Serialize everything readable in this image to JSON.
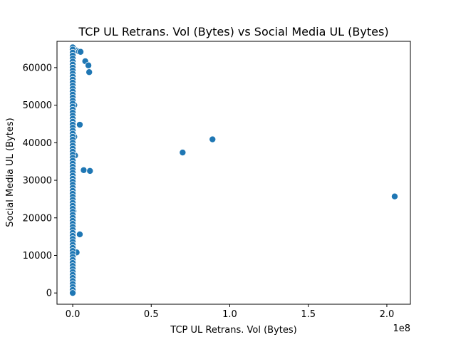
{
  "chart_data": {
    "type": "scatter",
    "title": "TCP UL Retrans. Vol (Bytes) vs Social Media UL (Bytes)",
    "xlabel": "TCP UL Retrans. Vol (Bytes)",
    "ylabel": "Social Media UL (Bytes)",
    "x_offset_label": "1e8",
    "xlim": [
      -0.1,
      2.15
    ],
    "ylim": [
      -3000,
      67000
    ],
    "x_ticks": [
      0.0,
      0.5,
      1.0,
      1.5,
      2.0
    ],
    "x_tick_labels": [
      "0.0",
      "0.5",
      "1.0",
      "1.5",
      "2.0"
    ],
    "y_ticks": [
      0,
      10000,
      20000,
      30000,
      40000,
      50000,
      60000
    ],
    "y_tick_labels": [
      "0",
      "10000",
      "20000",
      "30000",
      "40000",
      "50000",
      "60000"
    ],
    "grid": false,
    "marker_color": "#1f77b4",
    "marker_edge_color": "#ffffff",
    "points": [
      {
        "x": 0.005,
        "y": 64400
      },
      {
        "x": 0.02,
        "y": 64600
      },
      {
        "x": 0.04,
        "y": 64300
      },
      {
        "x": 0.05,
        "y": 64200
      },
      {
        "x": 0.08,
        "y": 61700
      },
      {
        "x": 0.1,
        "y": 60600
      },
      {
        "x": 0.105,
        "y": 58800
      },
      {
        "x": 0.01,
        "y": 50000
      },
      {
        "x": 0.045,
        "y": 44800
      },
      {
        "x": 0.01,
        "y": 41600
      },
      {
        "x": 0.015,
        "y": 36600
      },
      {
        "x": 0.07,
        "y": 32700
      },
      {
        "x": 0.11,
        "y": 32500
      },
      {
        "x": 0.005,
        "y": 21800
      },
      {
        "x": 0.045,
        "y": 15600
      },
      {
        "x": 0.025,
        "y": 10800
      },
      {
        "x": 0.7,
        "y": 37400
      },
      {
        "x": 0.89,
        "y": 40900
      },
      {
        "x": 2.05,
        "y": 25700
      },
      {
        "x": 0.0,
        "y": 65400
      },
      {
        "x": 0.0,
        "y": 64800
      },
      {
        "x": 0.0,
        "y": 64000
      },
      {
        "x": 0.0,
        "y": 63200
      },
      {
        "x": 0.0,
        "y": 62400
      },
      {
        "x": 0.0,
        "y": 61600
      },
      {
        "x": 0.0,
        "y": 60800
      },
      {
        "x": 0.0,
        "y": 60000
      },
      {
        "x": 0.0,
        "y": 59200
      },
      {
        "x": 0.0,
        "y": 58400
      },
      {
        "x": 0.0,
        "y": 57600
      },
      {
        "x": 0.0,
        "y": 56800
      },
      {
        "x": 0.0,
        "y": 56000
      },
      {
        "x": 0.0,
        "y": 55200
      },
      {
        "x": 0.0,
        "y": 54400
      },
      {
        "x": 0.0,
        "y": 53600
      },
      {
        "x": 0.0,
        "y": 52800
      },
      {
        "x": 0.0,
        "y": 52000
      },
      {
        "x": 0.0,
        "y": 51200
      },
      {
        "x": 0.0,
        "y": 50400
      },
      {
        "x": 0.0,
        "y": 49600
      },
      {
        "x": 0.0,
        "y": 48800
      },
      {
        "x": 0.0,
        "y": 48000
      },
      {
        "x": 0.0,
        "y": 47200
      },
      {
        "x": 0.0,
        "y": 46400
      },
      {
        "x": 0.0,
        "y": 45600
      },
      {
        "x": 0.0,
        "y": 44800
      },
      {
        "x": 0.0,
        "y": 44000
      },
      {
        "x": 0.0,
        "y": 43200
      },
      {
        "x": 0.0,
        "y": 42400
      },
      {
        "x": 0.0,
        "y": 41600
      },
      {
        "x": 0.0,
        "y": 40800
      },
      {
        "x": 0.0,
        "y": 40000
      },
      {
        "x": 0.0,
        "y": 39200
      },
      {
        "x": 0.0,
        "y": 38400
      },
      {
        "x": 0.0,
        "y": 37600
      },
      {
        "x": 0.0,
        "y": 36800
      },
      {
        "x": 0.0,
        "y": 36000
      },
      {
        "x": 0.0,
        "y": 35200
      },
      {
        "x": 0.0,
        "y": 34400
      },
      {
        "x": 0.0,
        "y": 33600
      },
      {
        "x": 0.0,
        "y": 32800
      },
      {
        "x": 0.0,
        "y": 32000
      },
      {
        "x": 0.0,
        "y": 31200
      },
      {
        "x": 0.0,
        "y": 30400
      },
      {
        "x": 0.0,
        "y": 29600
      },
      {
        "x": 0.0,
        "y": 28800
      },
      {
        "x": 0.0,
        "y": 28000
      },
      {
        "x": 0.0,
        "y": 27200
      },
      {
        "x": 0.0,
        "y": 26400
      },
      {
        "x": 0.0,
        "y": 25600
      },
      {
        "x": 0.0,
        "y": 24800
      },
      {
        "x": 0.0,
        "y": 24000
      },
      {
        "x": 0.0,
        "y": 23200
      },
      {
        "x": 0.0,
        "y": 22400
      },
      {
        "x": 0.0,
        "y": 21600
      },
      {
        "x": 0.0,
        "y": 20800
      },
      {
        "x": 0.0,
        "y": 20000
      },
      {
        "x": 0.0,
        "y": 19200
      },
      {
        "x": 0.0,
        "y": 18400
      },
      {
        "x": 0.0,
        "y": 17600
      },
      {
        "x": 0.0,
        "y": 16800
      },
      {
        "x": 0.0,
        "y": 16000
      },
      {
        "x": 0.0,
        "y": 15200
      },
      {
        "x": 0.0,
        "y": 14400
      },
      {
        "x": 0.0,
        "y": 13600
      },
      {
        "x": 0.0,
        "y": 12800
      },
      {
        "x": 0.0,
        "y": 12000
      },
      {
        "x": 0.0,
        "y": 11200
      },
      {
        "x": 0.0,
        "y": 10400
      },
      {
        "x": 0.0,
        "y": 9600
      },
      {
        "x": 0.0,
        "y": 8800
      },
      {
        "x": 0.0,
        "y": 8000
      },
      {
        "x": 0.0,
        "y": 7200
      },
      {
        "x": 0.0,
        "y": 6400
      },
      {
        "x": 0.0,
        "y": 5600
      },
      {
        "x": 0.0,
        "y": 4800
      },
      {
        "x": 0.0,
        "y": 4000
      },
      {
        "x": 0.0,
        "y": 3200
      },
      {
        "x": 0.0,
        "y": 2400
      },
      {
        "x": 0.0,
        "y": 1600
      },
      {
        "x": 0.0,
        "y": 800
      },
      {
        "x": 0.0,
        "y": 0
      }
    ]
  }
}
